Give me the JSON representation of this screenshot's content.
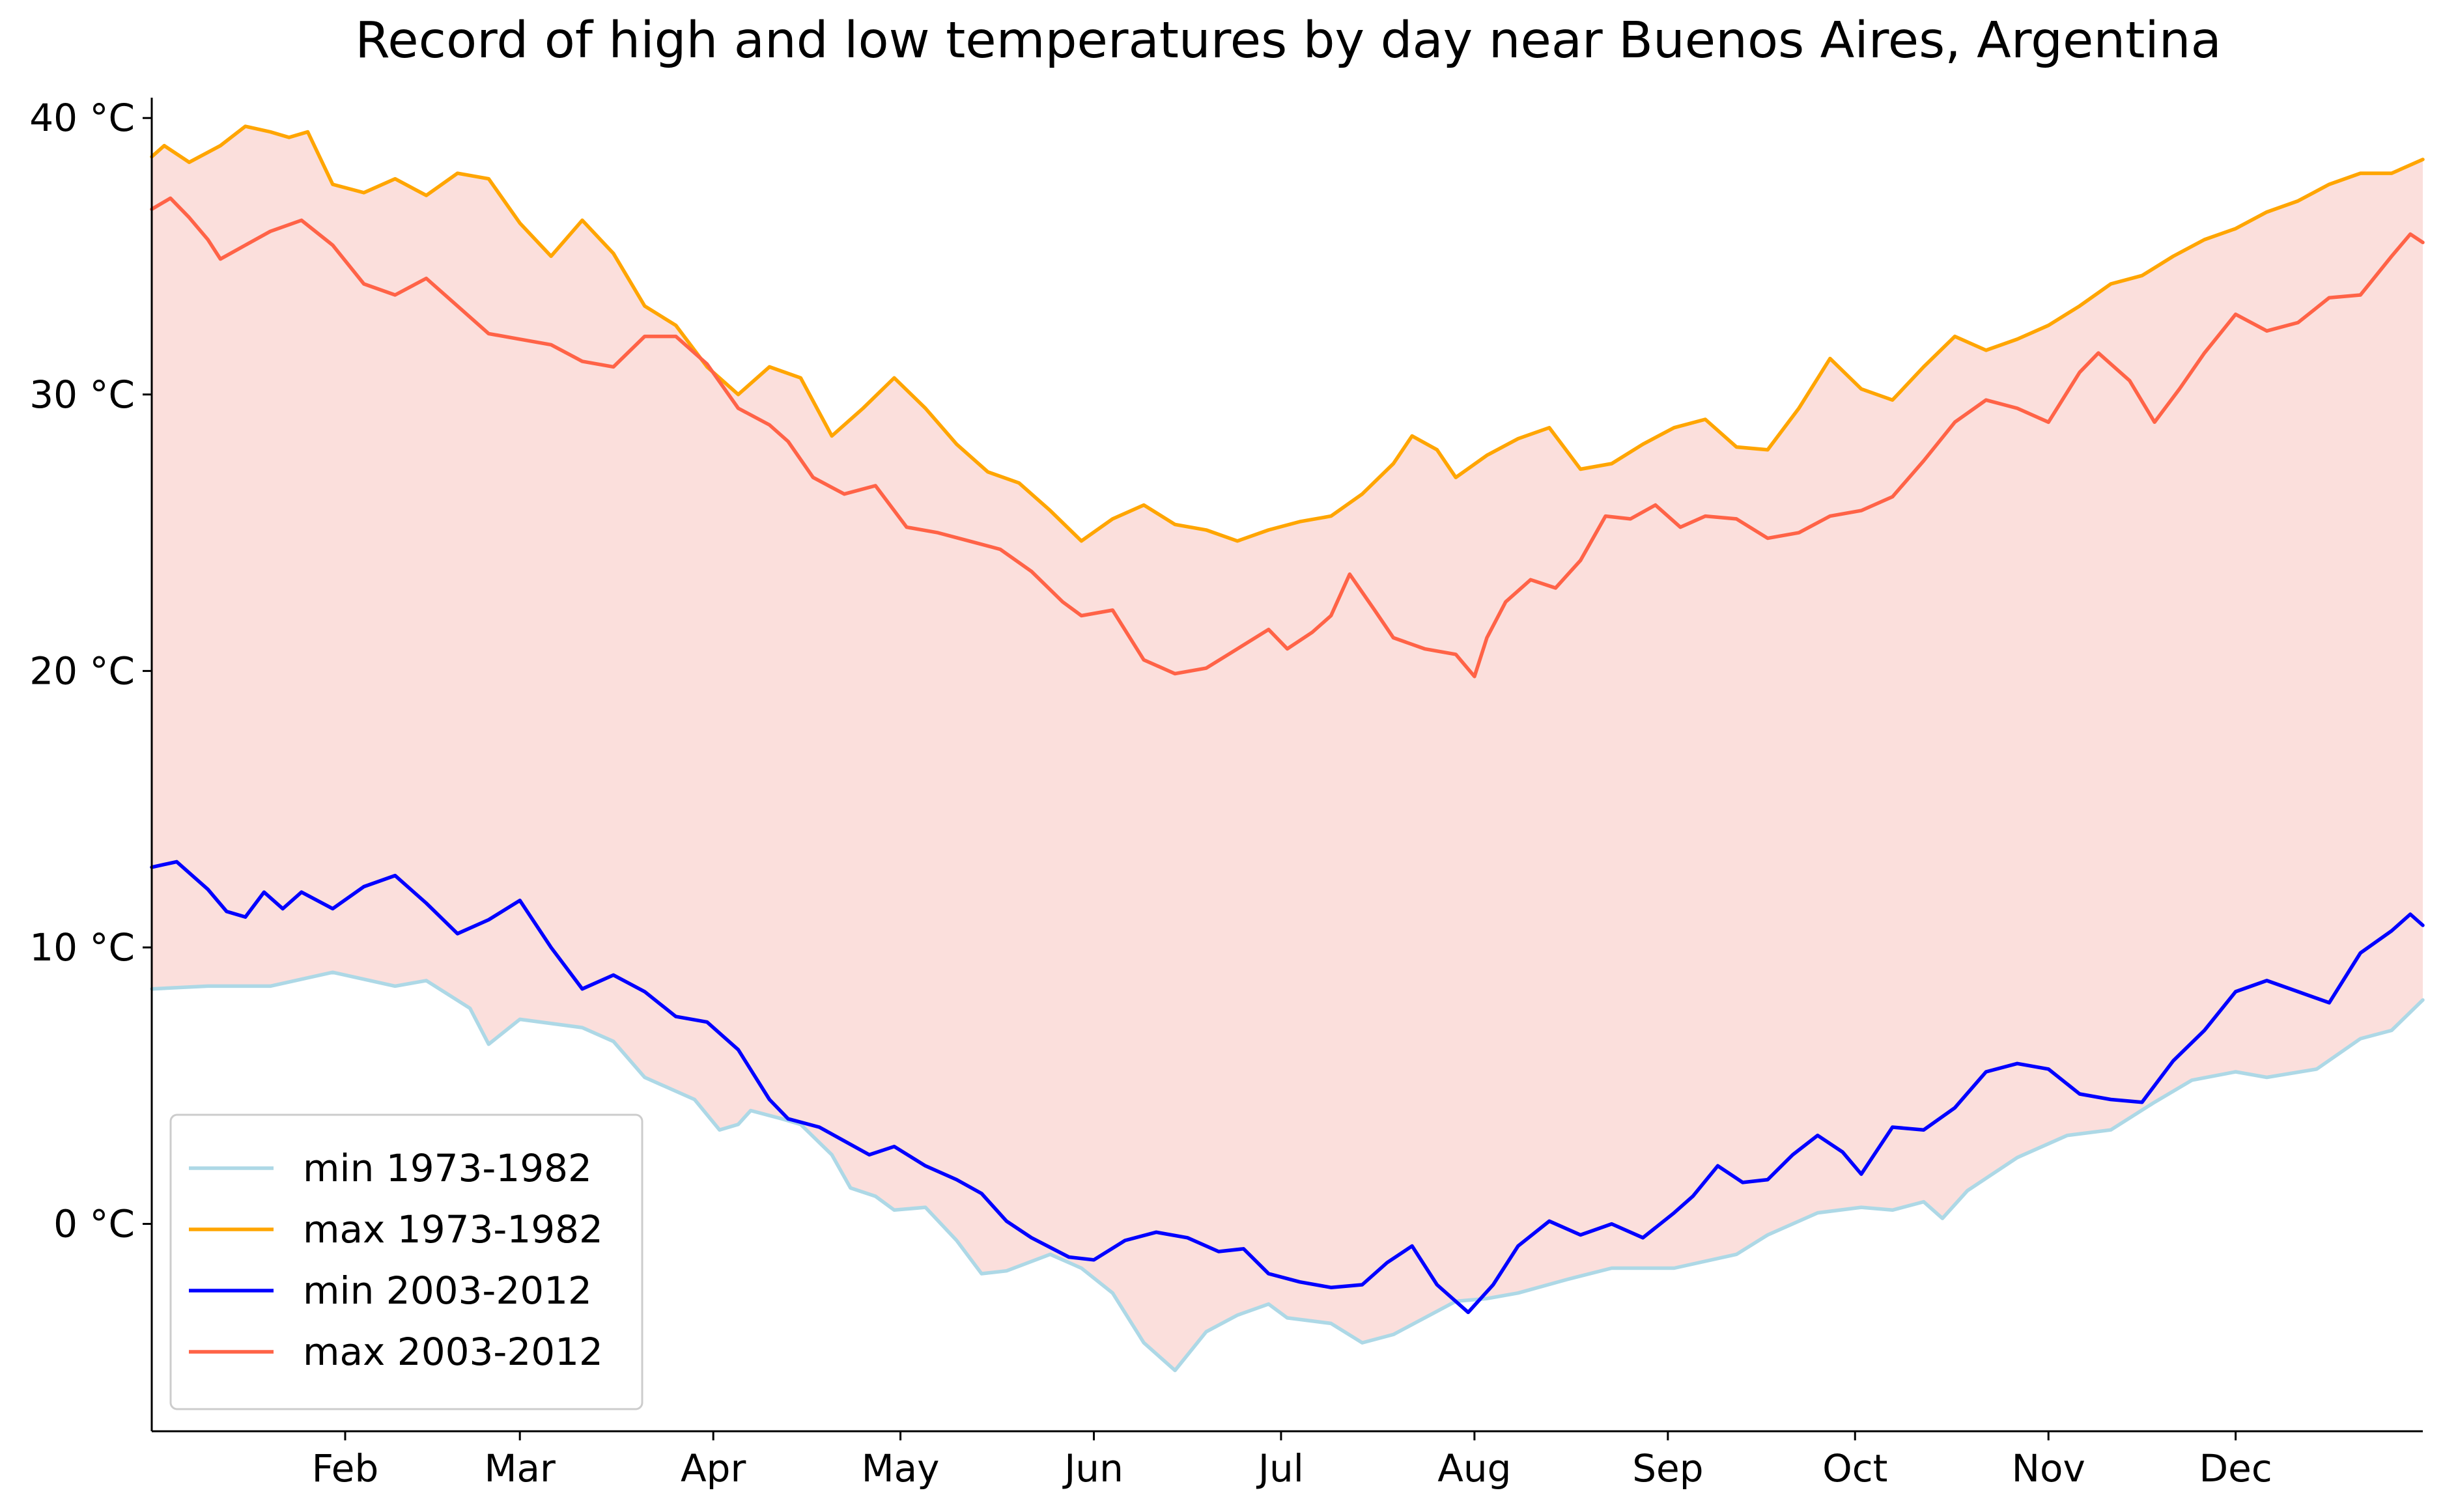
{
  "chart_data": {
    "type": "line",
    "title": "Record of high and low temperatures by day near Buenos Aires, Argentina",
    "xlabel": "",
    "ylabel": "",
    "x_unit": "day of year",
    "xlim": [
      1,
      365
    ],
    "ylim": [
      -7.5,
      40.5
    ],
    "grid": false,
    "legend_position": "lower-left",
    "fill_between": {
      "lower": "min 1973-1982",
      "upper": "max 1973-1982",
      "color": "#fbdfdc"
    },
    "x_ticks": [
      {
        "day": 32,
        "label": "Feb"
      },
      {
        "day": 60,
        "label": "Mar"
      },
      {
        "day": 91,
        "label": "Apr"
      },
      {
        "day": 121,
        "label": "May"
      },
      {
        "day": 152,
        "label": "Jun"
      },
      {
        "day": 182,
        "label": "Jul"
      },
      {
        "day": 213,
        "label": "Aug"
      },
      {
        "day": 244,
        "label": "Sep"
      },
      {
        "day": 274,
        "label": "Oct"
      },
      {
        "day": 305,
        "label": "Nov"
      },
      {
        "day": 335,
        "label": "Dec"
      }
    ],
    "y_ticks": [
      {
        "value": 0,
        "label": "0 °C"
      },
      {
        "value": 10,
        "label": "10 °C"
      },
      {
        "value": 20,
        "label": "20 °C"
      },
      {
        "value": 30,
        "label": "30 °C"
      },
      {
        "value": 40,
        "label": "40 °C"
      }
    ],
    "series": [
      {
        "name": "min 1973-1982",
        "color": "#add8e6",
        "points": [
          [
            1,
            8.5
          ],
          [
            10,
            8.6
          ],
          [
            20,
            8.6
          ],
          [
            30,
            9.1
          ],
          [
            40,
            8.6
          ],
          [
            45,
            8.8
          ],
          [
            52,
            7.8
          ],
          [
            55,
            6.5
          ],
          [
            60,
            7.4
          ],
          [
            70,
            7.1
          ],
          [
            75,
            6.6
          ],
          [
            80,
            5.3
          ],
          [
            88,
            4.5
          ],
          [
            92,
            3.4
          ],
          [
            95,
            3.6
          ],
          [
            97,
            4.1
          ],
          [
            102,
            3.8
          ],
          [
            105,
            3.6
          ],
          [
            110,
            2.5
          ],
          [
            113,
            1.3
          ],
          [
            117,
            1.0
          ],
          [
            120,
            0.5
          ],
          [
            125,
            0.6
          ],
          [
            130,
            -0.6
          ],
          [
            134,
            -1.8
          ],
          [
            138,
            -1.7
          ],
          [
            145,
            -1.1
          ],
          [
            150,
            -1.6
          ],
          [
            155,
            -2.5
          ],
          [
            160,
            -4.3
          ],
          [
            165,
            -5.3
          ],
          [
            170,
            -3.9
          ],
          [
            175,
            -3.3
          ],
          [
            180,
            -2.9
          ],
          [
            183,
            -3.4
          ],
          [
            190,
            -3.6
          ],
          [
            195,
            -4.3
          ],
          [
            200,
            -4.0
          ],
          [
            205,
            -3.4
          ],
          [
            210,
            -2.8
          ],
          [
            215,
            -2.7
          ],
          [
            220,
            -2.5
          ],
          [
            228,
            -2.0
          ],
          [
            235,
            -1.6
          ],
          [
            245,
            -1.6
          ],
          [
            255,
            -1.1
          ],
          [
            260,
            -0.4
          ],
          [
            268,
            0.4
          ],
          [
            275,
            0.6
          ],
          [
            280,
            0.5
          ],
          [
            285,
            0.8
          ],
          [
            288,
            0.2
          ],
          [
            292,
            1.2
          ],
          [
            300,
            2.4
          ],
          [
            308,
            3.2
          ],
          [
            315,
            3.4
          ],
          [
            322,
            4.4
          ],
          [
            328,
            5.2
          ],
          [
            335,
            5.5
          ],
          [
            340,
            5.3
          ],
          [
            348,
            5.6
          ],
          [
            355,
            6.7
          ],
          [
            360,
            7.0
          ],
          [
            365,
            8.1
          ]
        ]
      },
      {
        "name": "max 1973-1982",
        "color": "#ffa500",
        "points": [
          [
            1,
            38.6
          ],
          [
            3,
            39.0
          ],
          [
            7,
            38.4
          ],
          [
            12,
            39.0
          ],
          [
            16,
            39.7
          ],
          [
            20,
            39.5
          ],
          [
            23,
            39.3
          ],
          [
            26,
            39.5
          ],
          [
            30,
            37.6
          ],
          [
            35,
            37.3
          ],
          [
            40,
            37.8
          ],
          [
            45,
            37.2
          ],
          [
            50,
            38.0
          ],
          [
            55,
            37.8
          ],
          [
            60,
            36.2
          ],
          [
            65,
            35.0
          ],
          [
            70,
            36.3
          ],
          [
            75,
            35.1
          ],
          [
            80,
            33.2
          ],
          [
            85,
            32.5
          ],
          [
            90,
            31.0
          ],
          [
            95,
            30.0
          ],
          [
            100,
            31.0
          ],
          [
            105,
            30.6
          ],
          [
            110,
            28.5
          ],
          [
            115,
            29.5
          ],
          [
            120,
            30.6
          ],
          [
            125,
            29.5
          ],
          [
            130,
            28.2
          ],
          [
            135,
            27.2
          ],
          [
            140,
            26.8
          ],
          [
            145,
            25.8
          ],
          [
            150,
            24.7
          ],
          [
            155,
            25.5
          ],
          [
            160,
            26.0
          ],
          [
            165,
            25.3
          ],
          [
            170,
            25.1
          ],
          [
            175,
            24.7
          ],
          [
            180,
            25.1
          ],
          [
            185,
            25.4
          ],
          [
            190,
            25.6
          ],
          [
            195,
            26.4
          ],
          [
            200,
            27.5
          ],
          [
            203,
            28.5
          ],
          [
            207,
            28.0
          ],
          [
            210,
            27.0
          ],
          [
            215,
            27.8
          ],
          [
            220,
            28.4
          ],
          [
            225,
            28.8
          ],
          [
            230,
            27.3
          ],
          [
            235,
            27.5
          ],
          [
            240,
            28.2
          ],
          [
            245,
            28.8
          ],
          [
            250,
            29.1
          ],
          [
            255,
            28.1
          ],
          [
            260,
            28.0
          ],
          [
            265,
            29.5
          ],
          [
            270,
            31.3
          ],
          [
            275,
            30.2
          ],
          [
            280,
            29.8
          ],
          [
            285,
            31.0
          ],
          [
            290,
            32.1
          ],
          [
            295,
            31.6
          ],
          [
            300,
            32.0
          ],
          [
            305,
            32.5
          ],
          [
            310,
            33.2
          ],
          [
            315,
            34.0
          ],
          [
            320,
            34.3
          ],
          [
            325,
            35.0
          ],
          [
            330,
            35.6
          ],
          [
            335,
            36.0
          ],
          [
            340,
            36.6
          ],
          [
            345,
            37.0
          ],
          [
            350,
            37.6
          ],
          [
            355,
            38.0
          ],
          [
            360,
            38.0
          ],
          [
            365,
            38.5
          ]
        ]
      },
      {
        "name": "min 2003-2012",
        "color": "#0000ff",
        "points": [
          [
            1,
            12.9
          ],
          [
            5,
            13.1
          ],
          [
            10,
            12.1
          ],
          [
            13,
            11.3
          ],
          [
            16,
            11.1
          ],
          [
            19,
            12.0
          ],
          [
            22,
            11.4
          ],
          [
            25,
            12.0
          ],
          [
            30,
            11.4
          ],
          [
            35,
            12.2
          ],
          [
            40,
            12.6
          ],
          [
            45,
            11.6
          ],
          [
            50,
            10.5
          ],
          [
            55,
            11.0
          ],
          [
            60,
            11.7
          ],
          [
            65,
            10.0
          ],
          [
            70,
            8.5
          ],
          [
            75,
            9.0
          ],
          [
            80,
            8.4
          ],
          [
            85,
            7.5
          ],
          [
            90,
            7.3
          ],
          [
            95,
            6.3
          ],
          [
            100,
            4.5
          ],
          [
            103,
            3.8
          ],
          [
            108,
            3.5
          ],
          [
            112,
            3.0
          ],
          [
            116,
            2.5
          ],
          [
            120,
            2.8
          ],
          [
            125,
            2.1
          ],
          [
            130,
            1.6
          ],
          [
            134,
            1.1
          ],
          [
            138,
            0.1
          ],
          [
            142,
            -0.5
          ],
          [
            148,
            -1.2
          ],
          [
            152,
            -1.3
          ],
          [
            157,
            -0.6
          ],
          [
            162,
            -0.3
          ],
          [
            167,
            -0.5
          ],
          [
            172,
            -1.0
          ],
          [
            176,
            -0.9
          ],
          [
            180,
            -1.8
          ],
          [
            185,
            -2.1
          ],
          [
            190,
            -2.3
          ],
          [
            195,
            -2.2
          ],
          [
            199,
            -1.4
          ],
          [
            203,
            -0.8
          ],
          [
            207,
            -2.2
          ],
          [
            212,
            -3.2
          ],
          [
            216,
            -2.2
          ],
          [
            220,
            -0.8
          ],
          [
            225,
            0.1
          ],
          [
            230,
            -0.4
          ],
          [
            235,
            0.0
          ],
          [
            240,
            -0.5
          ],
          [
            245,
            0.4
          ],
          [
            248,
            1.0
          ],
          [
            252,
            2.1
          ],
          [
            256,
            1.5
          ],
          [
            260,
            1.6
          ],
          [
            264,
            2.5
          ],
          [
            268,
            3.2
          ],
          [
            272,
            2.6
          ],
          [
            275,
            1.8
          ],
          [
            280,
            3.5
          ],
          [
            285,
            3.4
          ],
          [
            290,
            4.2
          ],
          [
            295,
            5.5
          ],
          [
            300,
            5.8
          ],
          [
            305,
            5.6
          ],
          [
            310,
            4.7
          ],
          [
            315,
            4.5
          ],
          [
            320,
            4.4
          ],
          [
            325,
            5.9
          ],
          [
            330,
            7.0
          ],
          [
            335,
            8.4
          ],
          [
            340,
            8.8
          ],
          [
            345,
            8.4
          ],
          [
            350,
            8.0
          ],
          [
            355,
            9.8
          ],
          [
            360,
            10.6
          ],
          [
            363,
            11.2
          ],
          [
            365,
            10.8
          ]
        ]
      },
      {
        "name": "max 2003-2012",
        "color": "#ff6347",
        "points": [
          [
            1,
            36.7
          ],
          [
            4,
            37.1
          ],
          [
            7,
            36.4
          ],
          [
            10,
            35.6
          ],
          [
            12,
            34.9
          ],
          [
            16,
            35.4
          ],
          [
            20,
            35.9
          ],
          [
            25,
            36.3
          ],
          [
            30,
            35.4
          ],
          [
            35,
            34.0
          ],
          [
            40,
            33.6
          ],
          [
            45,
            34.2
          ],
          [
            50,
            33.2
          ],
          [
            55,
            32.2
          ],
          [
            60,
            32.0
          ],
          [
            65,
            31.8
          ],
          [
            70,
            31.2
          ],
          [
            75,
            31.0
          ],
          [
            80,
            32.1
          ],
          [
            85,
            32.1
          ],
          [
            90,
            31.1
          ],
          [
            95,
            29.5
          ],
          [
            100,
            28.9
          ],
          [
            103,
            28.3
          ],
          [
            107,
            27.0
          ],
          [
            112,
            26.4
          ],
          [
            117,
            26.7
          ],
          [
            122,
            25.2
          ],
          [
            127,
            25.0
          ],
          [
            132,
            24.7
          ],
          [
            137,
            24.4
          ],
          [
            142,
            23.6
          ],
          [
            147,
            22.5
          ],
          [
            150,
            22.0
          ],
          [
            155,
            22.2
          ],
          [
            160,
            20.4
          ],
          [
            165,
            19.9
          ],
          [
            170,
            20.1
          ],
          [
            175,
            20.8
          ],
          [
            180,
            21.5
          ],
          [
            183,
            20.8
          ],
          [
            187,
            21.4
          ],
          [
            190,
            22.0
          ],
          [
            193,
            23.5
          ],
          [
            197,
            22.2
          ],
          [
            200,
            21.2
          ],
          [
            205,
            20.8
          ],
          [
            210,
            20.6
          ],
          [
            213,
            19.8
          ],
          [
            215,
            21.2
          ],
          [
            218,
            22.5
          ],
          [
            222,
            23.3
          ],
          [
            226,
            23.0
          ],
          [
            230,
            24.0
          ],
          [
            234,
            25.6
          ],
          [
            238,
            25.5
          ],
          [
            242,
            26.0
          ],
          [
            246,
            25.2
          ],
          [
            250,
            25.6
          ],
          [
            255,
            25.5
          ],
          [
            260,
            24.8
          ],
          [
            265,
            25.0
          ],
          [
            270,
            25.6
          ],
          [
            275,
            25.8
          ],
          [
            280,
            26.3
          ],
          [
            285,
            27.6
          ],
          [
            290,
            29.0
          ],
          [
            295,
            29.8
          ],
          [
            300,
            29.5
          ],
          [
            305,
            29.0
          ],
          [
            310,
            30.8
          ],
          [
            313,
            31.5
          ],
          [
            318,
            30.5
          ],
          [
            322,
            29.0
          ],
          [
            326,
            30.2
          ],
          [
            330,
            31.5
          ],
          [
            335,
            32.9
          ],
          [
            340,
            32.3
          ],
          [
            345,
            32.6
          ],
          [
            350,
            33.5
          ],
          [
            355,
            33.6
          ],
          [
            360,
            35.0
          ],
          [
            363,
            35.8
          ],
          [
            365,
            35.5
          ]
        ]
      }
    ]
  }
}
